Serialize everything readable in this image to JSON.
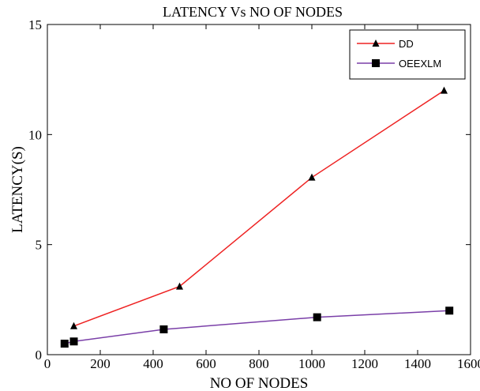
{
  "chart_data": {
    "type": "line",
    "title": "LATENCY  Vs  NO OF NODES",
    "xlabel": "NO OF NODES",
    "ylabel": "LATENCY(S)",
    "xlim": [
      0,
      1600
    ],
    "ylim": [
      0,
      15
    ],
    "x_ticks": [
      "0",
      "200",
      "400",
      "600",
      "800",
      "1000",
      "1200",
      "1400",
      "1600"
    ],
    "y_ticks": [
      "0",
      "5",
      "10",
      "15"
    ],
    "grid": false,
    "legend_position": "top-right",
    "series": [
      {
        "name": "DD",
        "color": "#ee2222",
        "marker": "triangle",
        "x": [
          100,
          500,
          1000,
          1500
        ],
        "y": [
          1.3,
          3.1,
          8.05,
          12.0
        ]
      },
      {
        "name": "OEEXLM",
        "color": "#7a3fa8",
        "marker": "square",
        "x": [
          65,
          100,
          440,
          1020,
          1520
        ],
        "y": [
          0.5,
          0.6,
          1.15,
          1.7,
          2.0
        ]
      }
    ]
  }
}
